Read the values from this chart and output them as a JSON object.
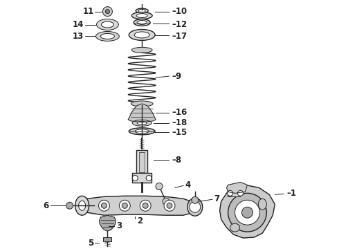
{
  "background_color": "#ffffff",
  "line_color": "#222222",
  "label_color": "#000000",
  "fig_width": 4.9,
  "fig_height": 3.6,
  "dpi": 100
}
